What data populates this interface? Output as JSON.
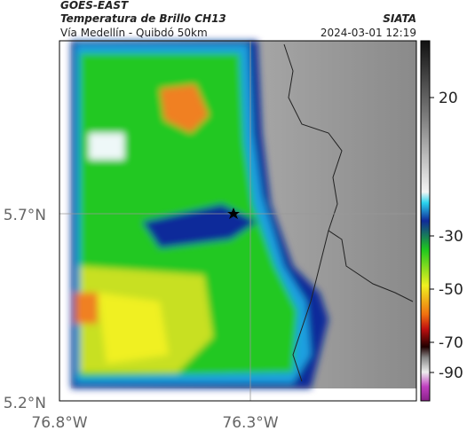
{
  "header": {
    "title": "GOES-EAST",
    "product": "Temperatura de Brillo CH13",
    "region": "Vía Medellín - Quibdó 50km",
    "source": "SIATA",
    "timestamp": "2024-03-01 12:19"
  },
  "axes": {
    "lat_labels": [
      "5.7°N",
      "5.2°N"
    ],
    "lon_labels": [
      "76.8°W",
      "76.3°W"
    ]
  },
  "colorbar": {
    "ticks": [
      20,
      -30,
      -50,
      -70,
      -90
    ]
  }
}
